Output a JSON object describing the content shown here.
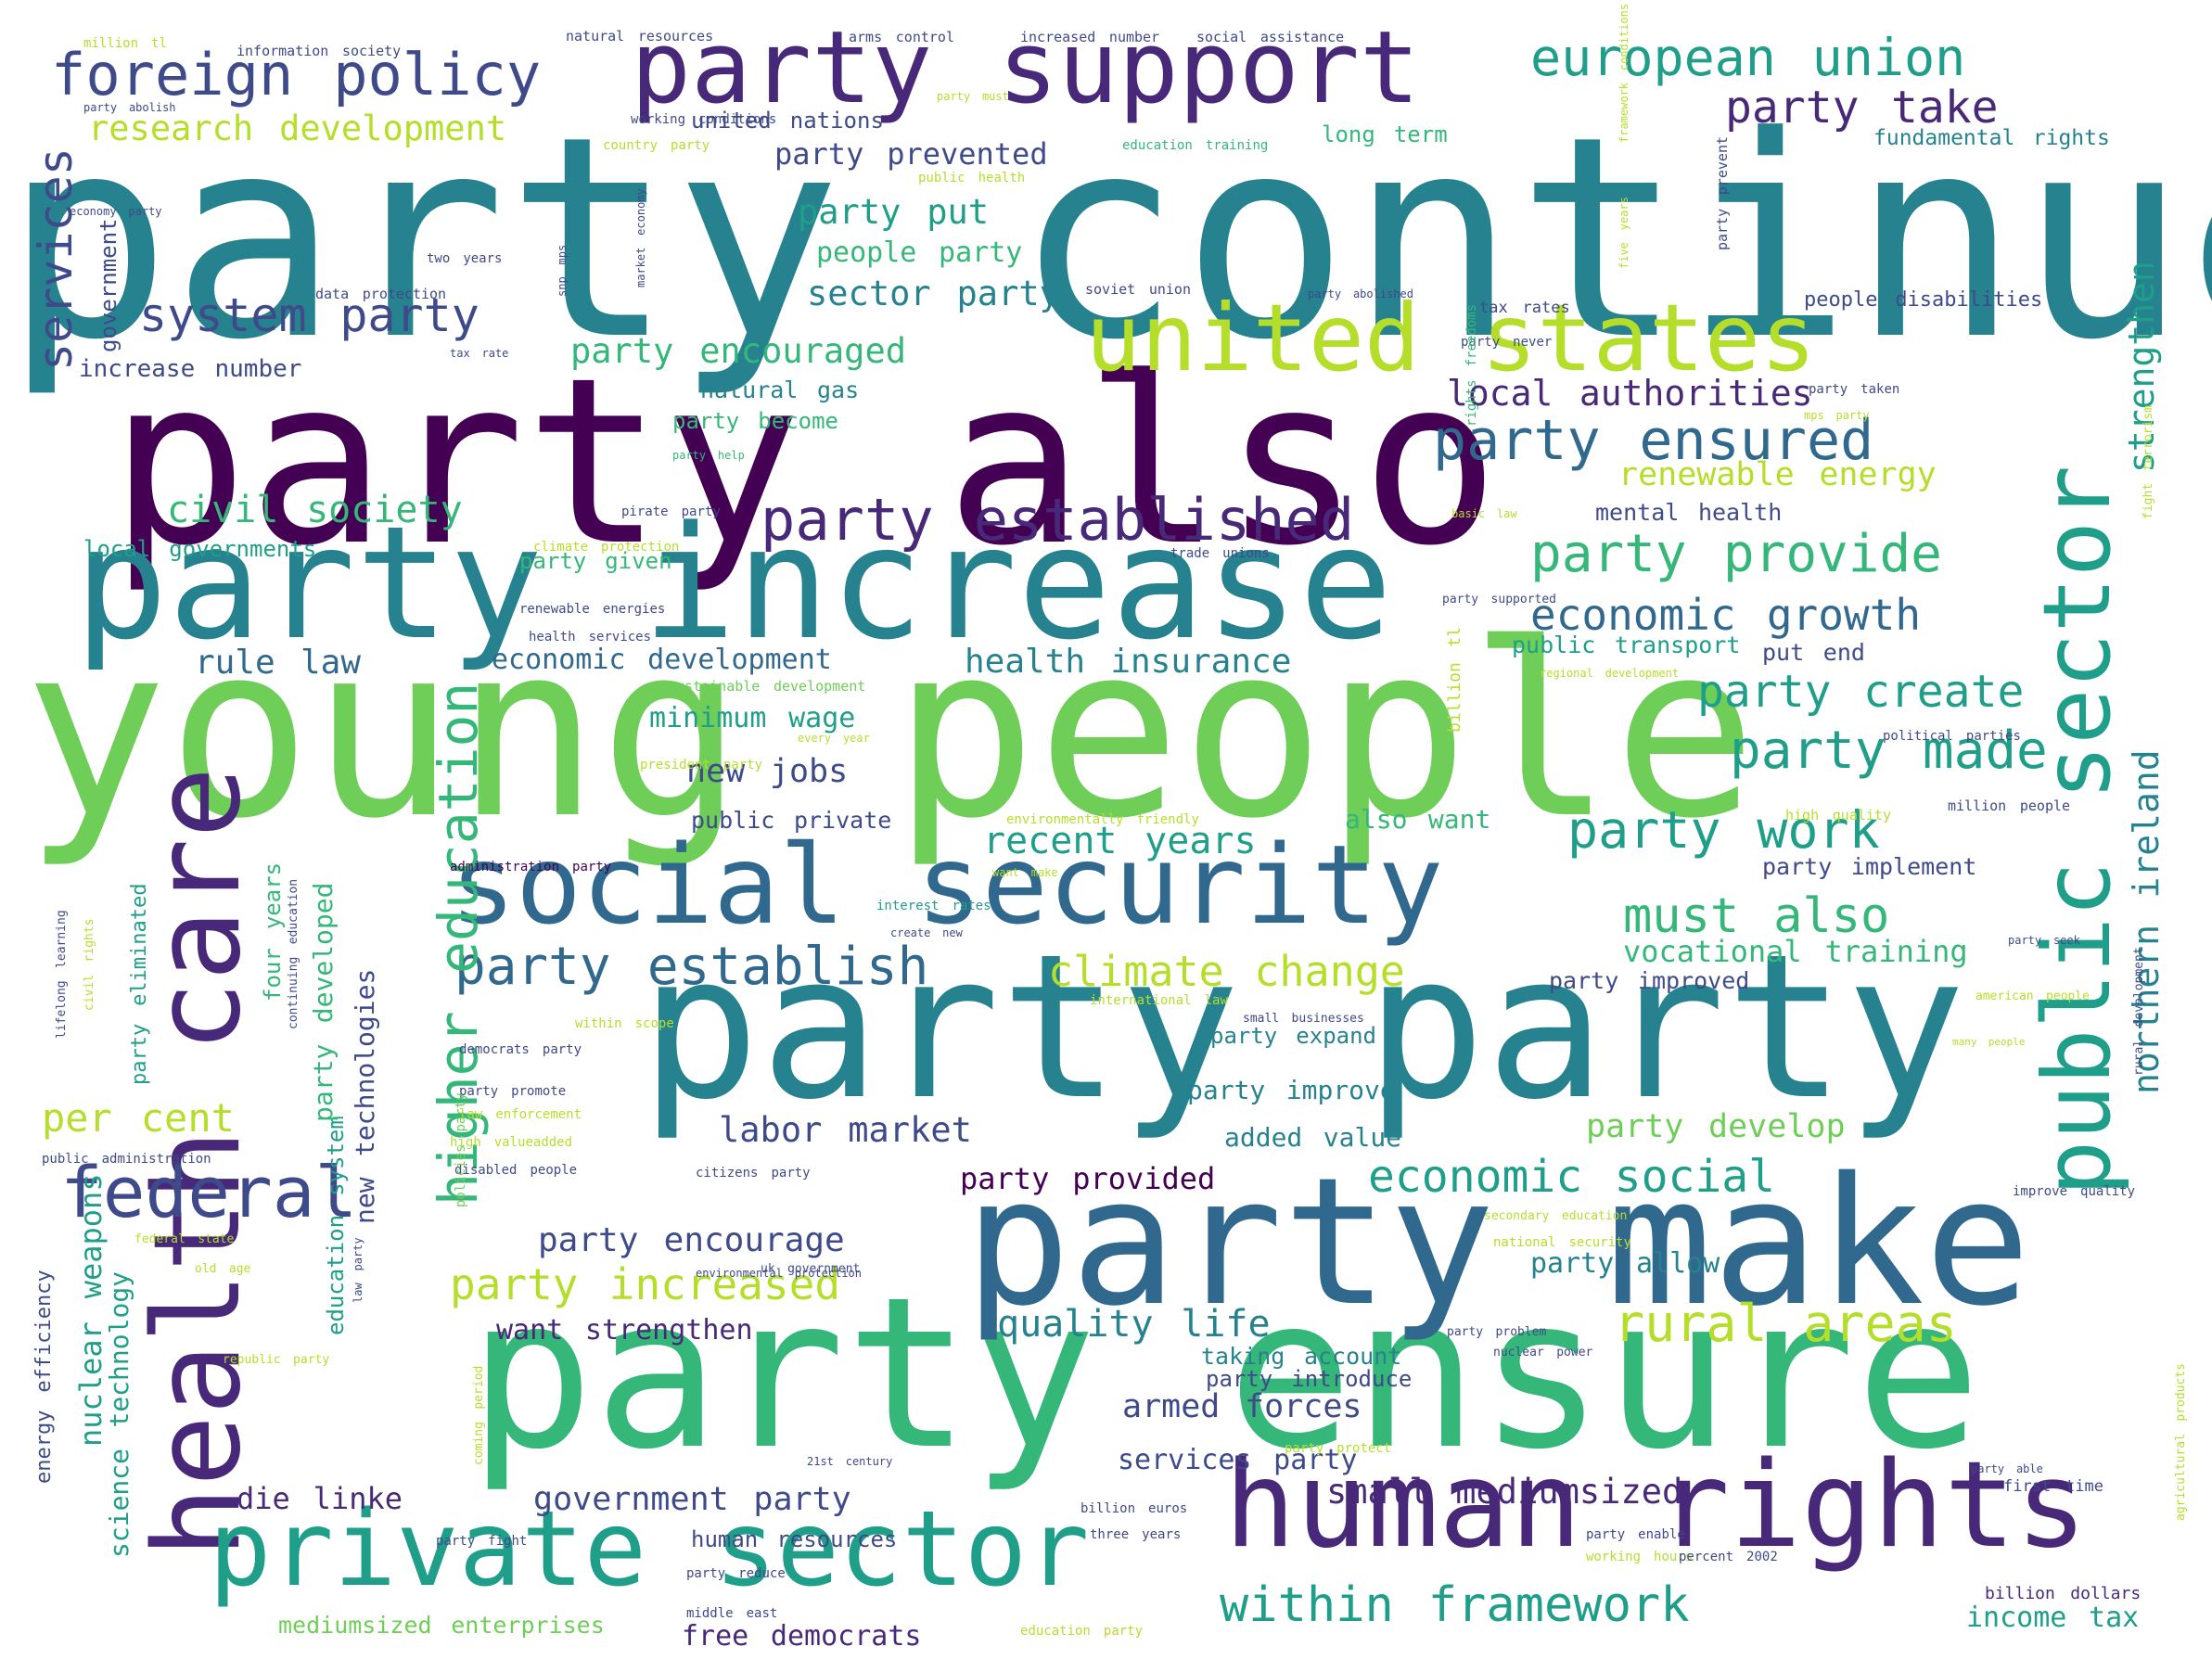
{
  "palette": {
    "c1": "#440154",
    "c2": "#482878",
    "c3": "#3e4a89",
    "c4": "#31688e",
    "c5": "#26828e",
    "c6": "#1f9e89",
    "c7": "#35b779",
    "c8": "#6ece58",
    "c9": "#b5de2b",
    "c10": "#fde725"
  },
  "words": [
    "party continue",
    "party also",
    "young people",
    "party increase",
    "party party",
    "party ensure",
    "party make",
    "social security",
    "health care",
    "human rights",
    "private sector",
    "public sector",
    "united states",
    "party support",
    "foreign policy",
    "european union",
    "party take",
    "research development",
    "party prevented",
    "party put",
    "people party",
    "sector party",
    "system party",
    "party encouraged",
    "services",
    "government",
    "increase number",
    "natural gas",
    "party become",
    "local authorities",
    "party ensured",
    "strengthen",
    "party established",
    "civil society",
    "local governments",
    "party given",
    "economic growth",
    "renewable energy",
    "mental health",
    "party provide",
    "rule law",
    "economic development",
    "health insurance",
    "public transport",
    "put end",
    "party create",
    "minimum wage",
    "sustainable development",
    "party made",
    "new jobs",
    "public private",
    "also want",
    "party work",
    "northern ireland",
    "recent years",
    "party implement",
    "must also",
    "party establish",
    "climate change",
    "vocational training",
    "party improved",
    "federal",
    "labor market",
    "party expand",
    "per cent",
    "party improve",
    "added value",
    "party develop",
    "economic social",
    "party provided",
    "higher education",
    "party encourage",
    "party allow",
    "party increased",
    "rural areas",
    "quality life",
    "want strengthen",
    "taking account",
    "party introduce",
    "armed forces",
    "services party",
    "government party",
    "small mediumsized",
    "die linke",
    "within framework",
    "free democrats",
    "human resources",
    "mediumsized enterprises",
    "income tax",
    "billion dollars",
    "first time",
    "nuclear weapons",
    "science technology",
    "energy efficiency",
    "education system",
    "new technologies",
    "party developed",
    "four years",
    "party eliminated",
    "united nations",
    "long term",
    "fundamental rights",
    "people disabilities",
    "tax rates",
    "soviet union",
    "party abolished",
    "data protection",
    "two years",
    "working conditions",
    "information society",
    "natural resources",
    "arms control",
    "increased number",
    "social assistance",
    "million tl",
    "party abolish",
    "country party",
    "education training",
    "public health",
    "party must",
    "economy party",
    "snp mps",
    "market economy",
    "five years",
    "party never",
    "tax rate",
    "party prevent",
    "framework conditions",
    "rights freedoms",
    "basic law",
    "climate protection",
    "pirate party",
    "party help",
    "trade unions",
    "party taken",
    "mps party",
    "renewable energies",
    "health services",
    "party supported",
    "billion tl",
    "regional development",
    "every year",
    "political parties",
    "president party",
    "environmentally friendly",
    "high quality",
    "million people",
    "administration party",
    "interest rates",
    "create new",
    "want make",
    "party seek",
    "international law",
    "american people",
    "within scope",
    "small businesses",
    "democrats party",
    "many people",
    "law enforcement",
    "party promote",
    "disabled people",
    "high valueadded",
    "citizens party",
    "improve quality",
    "secondary education",
    "national security",
    "federal state",
    "old age",
    "uk government",
    "environmental protection",
    "law party",
    "republic party",
    "nuclear power",
    "party problem",
    "coming period",
    "party protect",
    "21st century",
    "party able",
    "billion euros",
    "party fight",
    "three years",
    "party enable",
    "working hours",
    "percent 2002",
    "party reduce",
    "middle east",
    "education party",
    "lifelong learning",
    "civil rights",
    "continuing education",
    "public administration",
    "policies party",
    "agricultural products",
    "rural development",
    "fight terrorism"
  ]
}
